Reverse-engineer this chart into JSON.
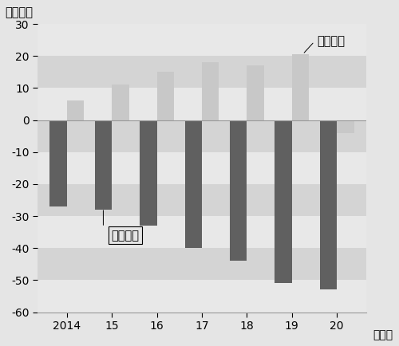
{
  "years": [
    "2014",
    "15",
    "16",
    "17",
    "18",
    "19",
    "20"
  ],
  "foreign_values": [
    6,
    11,
    15,
    18,
    17,
    20.5,
    -4
  ],
  "japanese_values": [
    -27,
    -28,
    -33,
    -40,
    -44,
    -51,
    -53
  ],
  "foreign_color": "#c8c8c8",
  "japanese_color": "#606060",
  "foreign_label": "外国人数",
  "japanese_label": "日本人数",
  "ylabel": "（万人）",
  "xlabel_suffix": "（年）",
  "ylim": [
    -60,
    30
  ],
  "yticks": [
    -60,
    -50,
    -40,
    -30,
    -20,
    -10,
    0,
    10,
    20,
    30
  ],
  "bg_color": "#e5e5e5",
  "bar_width": 0.38,
  "tick_fontsize": 10,
  "label_fontsize": 10.5,
  "stripe_colors": [
    "#ebebeb",
    "#d8d8d8"
  ]
}
